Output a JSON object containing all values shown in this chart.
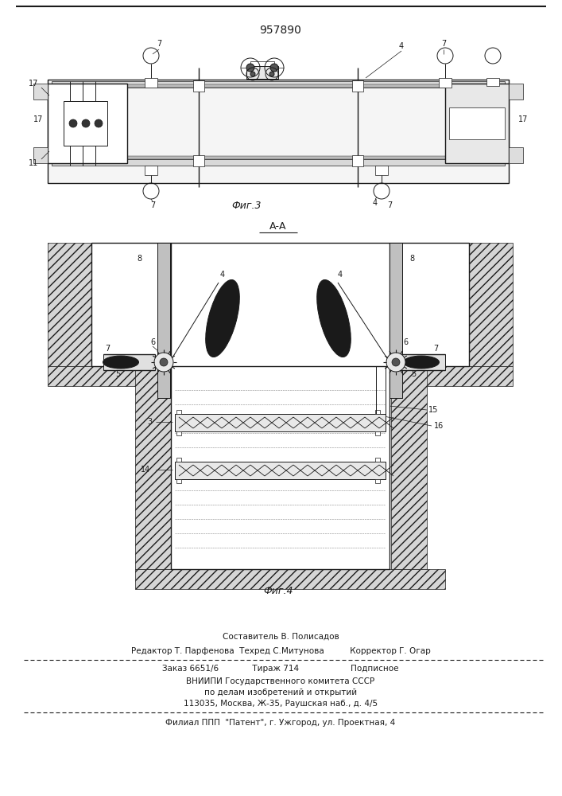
{
  "patent_number": "957890",
  "fig3_label": "Фиг.3",
  "fig4_label": "Фиг.4",
  "section_label": "А-А",
  "footer_line1": "Составитель В. Полисадов",
  "footer_line2": "Редактор Т. Парфенова  Техред С.Митунова          Корректор Г. Огар",
  "footer_line3": "Заказ 6651/6             Тираж 714                    Подписное",
  "footer_line4": "ВНИИПИ Государственного комитета СССР",
  "footer_line5": "по делам изобретений и открытий",
  "footer_line6": "113035, Москва, Ж-35, Раушская наб., д. 4/5",
  "footer_line7": "Филиал ППП  \"Патент\", г. Ужгород, ул. Проектная, 4",
  "bg_color": "#ffffff",
  "line_color": "#1a1a1a"
}
